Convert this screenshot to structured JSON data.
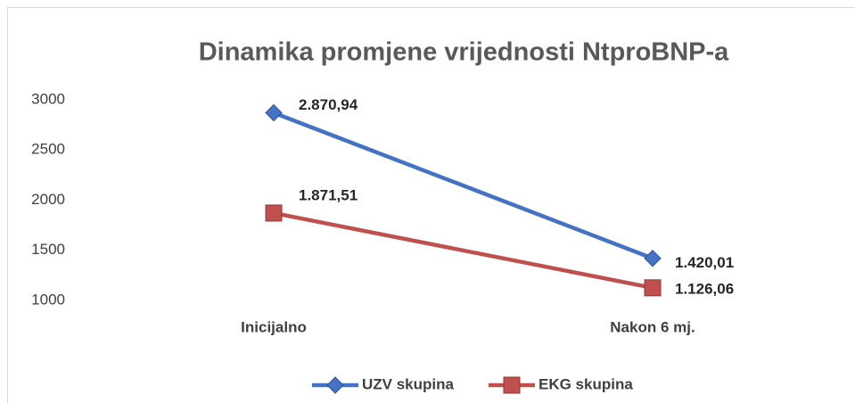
{
  "chart_data": {
    "type": "line",
    "title": "Dinamika promjene vrijednosti NtproBNP-a",
    "categories": [
      "Inicijalno",
      "Nakon 6 mj."
    ],
    "series": [
      {
        "name": "UZV skupina",
        "color": "#4472c4",
        "marker": "diamond",
        "values": [
          2870.94,
          1420.01
        ],
        "value_labels": [
          "2.870,94",
          "1.420,01"
        ]
      },
      {
        "name": "EKG skupina",
        "color": "#c0504d",
        "marker": "square",
        "values": [
          1871.51,
          1126.06
        ],
        "value_labels": [
          "1.871,51",
          "1.126,06"
        ]
      }
    ],
    "ylim": [
      1000,
      3000
    ],
    "yticks": [
      1000,
      1500,
      2000,
      2500,
      3000
    ],
    "grid": false,
    "legend": "bottom"
  }
}
